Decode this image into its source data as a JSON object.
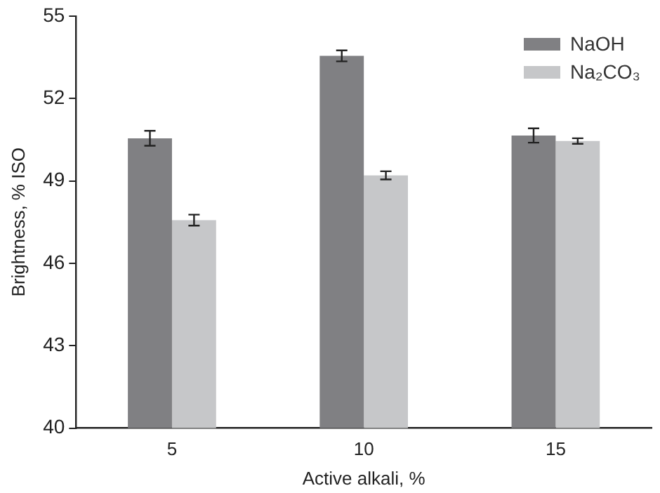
{
  "chart_data": {
    "type": "bar",
    "xlabel": "Active alkali, %",
    "ylabel": "Brightness, % ISO",
    "categories": [
      "5",
      "10",
      "15"
    ],
    "series": [
      {
        "name": "NaOH",
        "color": "#808083",
        "values": [
          50.55,
          53.55,
          50.65
        ],
        "errors": [
          0.27,
          0.2,
          0.26
        ]
      },
      {
        "name": "Na₂CO₃",
        "color": "#c6c7c9",
        "values": [
          47.57,
          49.2,
          50.45
        ],
        "errors": [
          0.2,
          0.15,
          0.1
        ]
      }
    ],
    "ylim": [
      40,
      55
    ],
    "yticks": [
      40,
      43,
      46,
      49,
      52,
      55
    ],
    "grid": false,
    "legend": "top right"
  }
}
